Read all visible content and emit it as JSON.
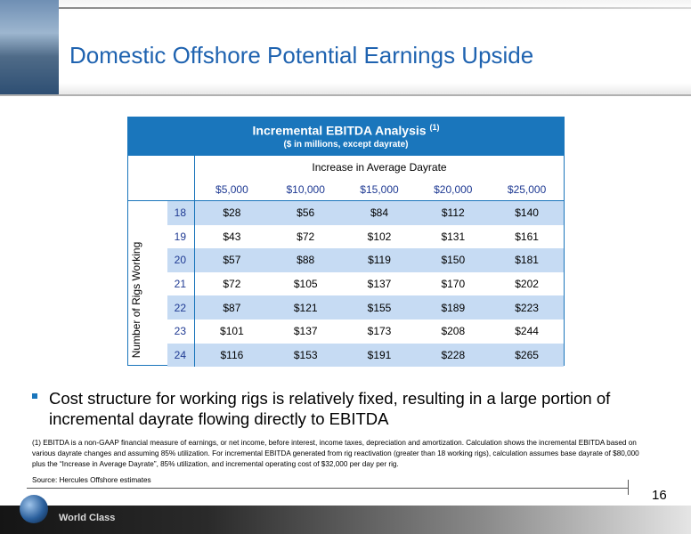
{
  "header": {
    "title": "Domestic Offshore Potential Earnings Upside"
  },
  "table": {
    "title": "Incremental EBITDA Analysis",
    "title_note": "(1)",
    "subtitle": "($ in millions, except dayrate)",
    "column_group": "Increase in Average Dayrate",
    "columns": [
      "$5,000",
      "$10,000",
      "$15,000",
      "$20,000",
      "$25,000"
    ],
    "row_axis_label": "Number of Rigs Working",
    "rows": [
      {
        "label": "18",
        "values": [
          "$28",
          "$56",
          "$84",
          "$112",
          "$140"
        ]
      },
      {
        "label": "19",
        "values": [
          "$43",
          "$72",
          "$102",
          "$131",
          "$161"
        ]
      },
      {
        "label": "20",
        "values": [
          "$57",
          "$88",
          "$119",
          "$150",
          "$181"
        ]
      },
      {
        "label": "21",
        "values": [
          "$72",
          "$105",
          "$137",
          "$170",
          "$202"
        ]
      },
      {
        "label": "22",
        "values": [
          "$87",
          "$121",
          "$155",
          "$189",
          "$223"
        ]
      },
      {
        "label": "23",
        "values": [
          "$101",
          "$137",
          "$173",
          "$208",
          "$244"
        ]
      },
      {
        "label": "24",
        "values": [
          "$116",
          "$153",
          "$191",
          "$228",
          "$265"
        ]
      }
    ]
  },
  "bullet": "Cost structure for working rigs is relatively fixed, resulting in a large portion of incremental dayrate flowing directly to EBITDA",
  "footnote": "(1)  EBITDA is a non-GAAP financial measure of earnings, or net income, before interest, income taxes, depreciation and amortization.  Calculation shows the incremental EBITDA based on various dayrate changes and assuming 85% utilization. For incremental EBITDA generated from rig reactivation (greater than 18 working rigs), calculation assumes base dayrate of $80,000 plus the “Increase in Average Dayrate”, 85% utilization, and incremental operating cost of $32,000 per day per rig.",
  "source": "Source: Hercules Offshore estimates",
  "page_number": "16",
  "footer": {
    "brand": "World Class"
  }
}
